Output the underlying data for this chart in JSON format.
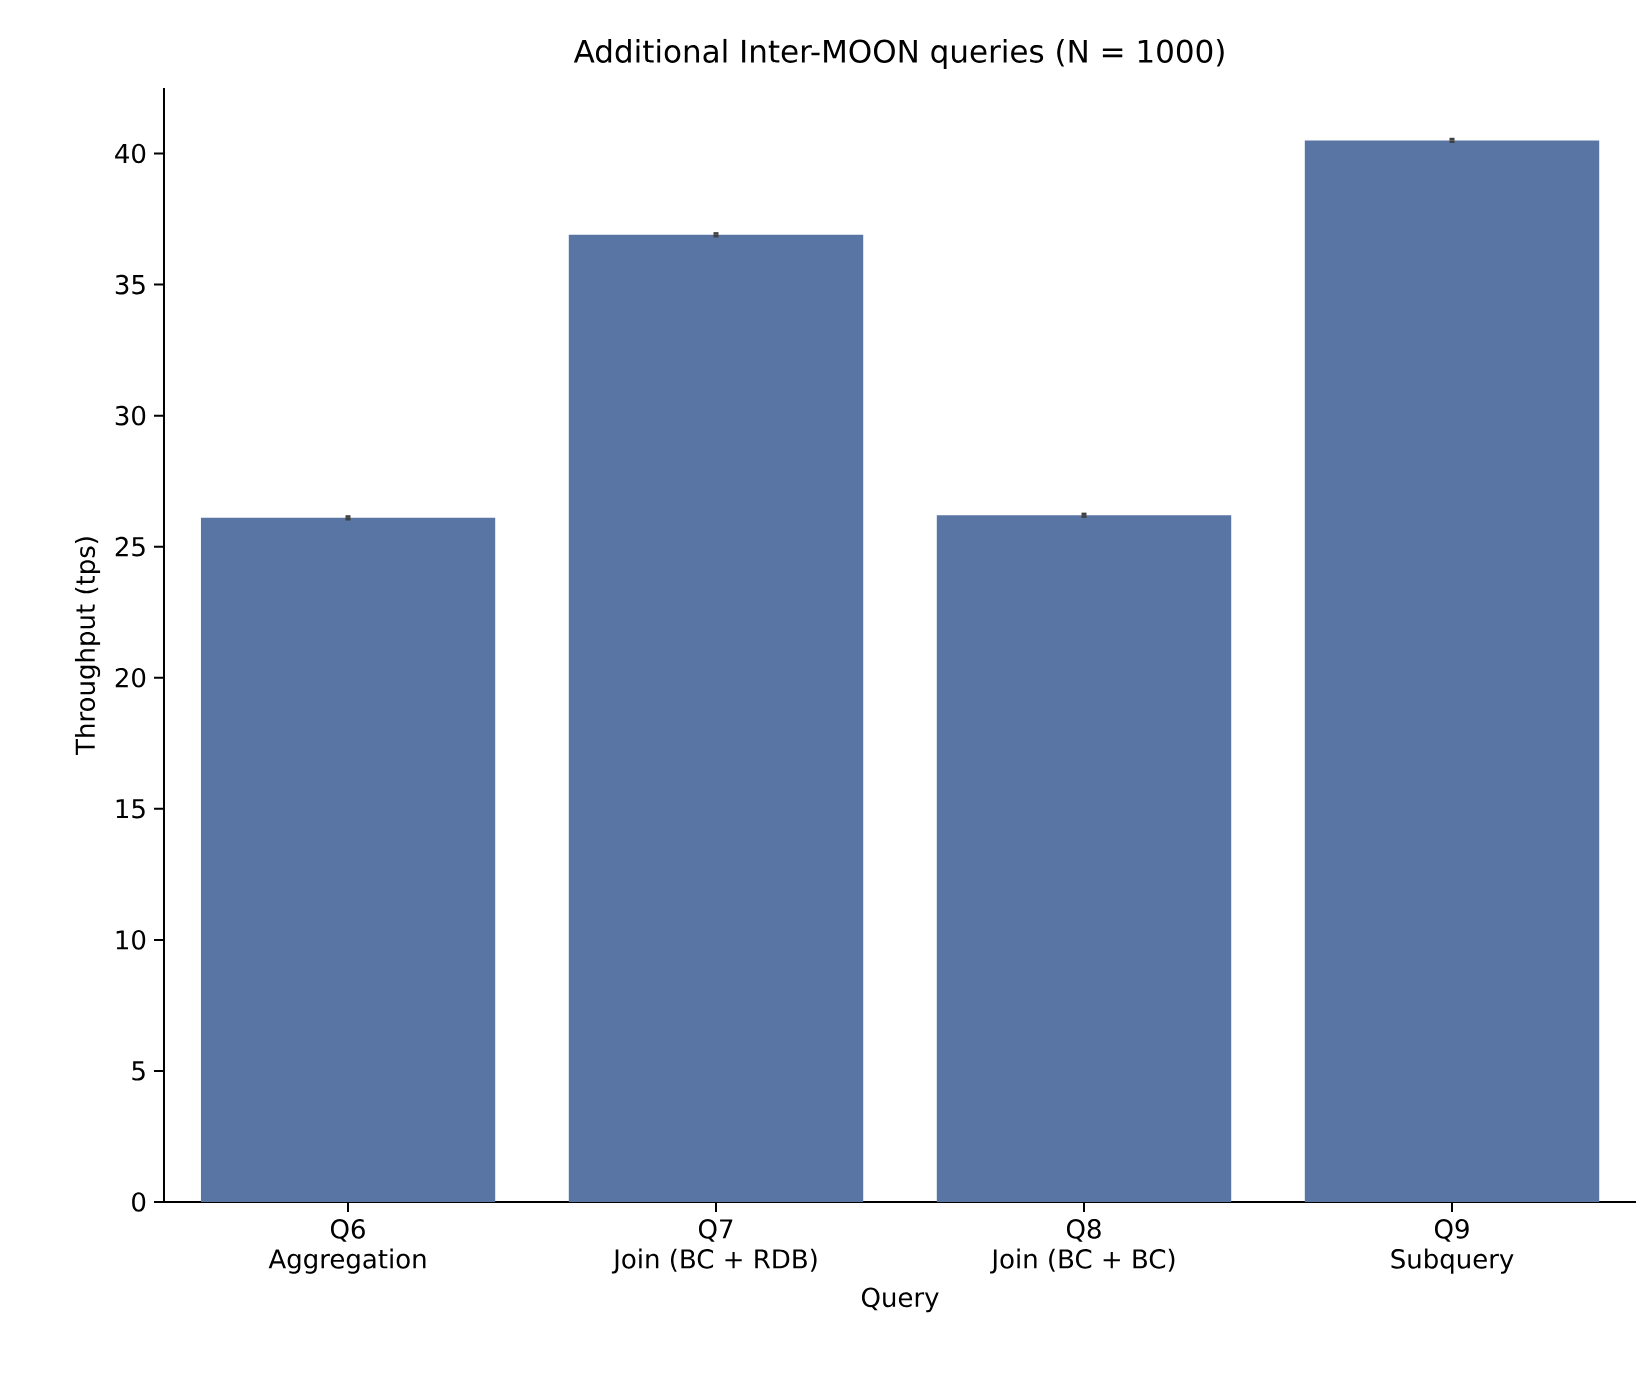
{
  "chart_data": {
    "type": "bar",
    "title": "Additional Inter-MOON queries (N = 1000)",
    "xlabel": "Query",
    "ylabel": "Throughput (tps)",
    "categories": [
      "Q6\nAggregation",
      "Q7\nJoin (BC + RDB)",
      "Q8\nJoin (BC + BC)",
      "Q9\nSubquery"
    ],
    "values": [
      26.1,
      36.9,
      26.2,
      40.5
    ],
    "errors": [
      0.1,
      0.1,
      0.1,
      0.1
    ],
    "color": "#5875a4",
    "ylim": [
      0,
      42.5
    ],
    "yticks": [
      0,
      5,
      10,
      15,
      20,
      25,
      30,
      35,
      40
    ],
    "grid": false
  }
}
